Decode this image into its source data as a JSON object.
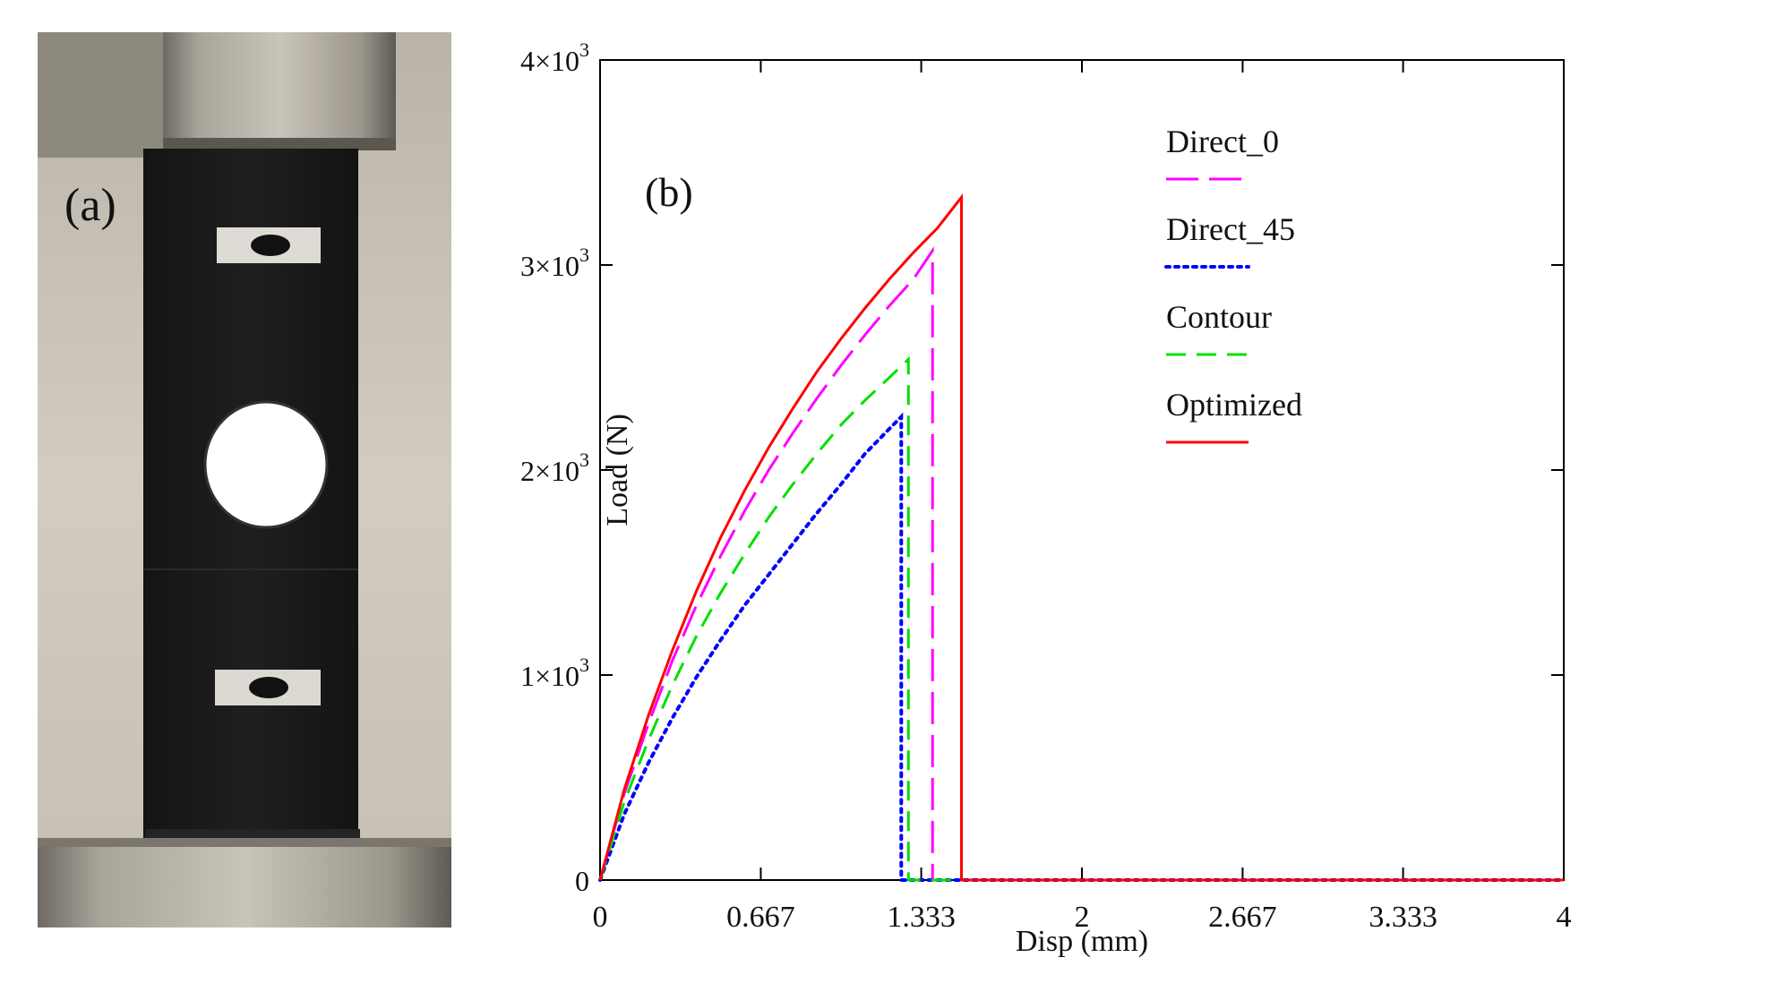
{
  "figure": {
    "panel_a_label": "(a)",
    "panel_b_label": "(b)"
  },
  "colors": {
    "direct_0": "#ff00ff",
    "direct_45": "#0000ff",
    "contour": "#00e000",
    "optimized": "#ff0000"
  },
  "chart_data": {
    "type": "line",
    "title": "",
    "xlabel": "Disp (mm)",
    "ylabel": "Load (N)",
    "xlim": [
      0,
      4
    ],
    "ylim": [
      0,
      4000
    ],
    "x_ticks": [
      0,
      0.667,
      1.333,
      2,
      2.667,
      3.333,
      4
    ],
    "x_tick_labels": [
      "0",
      "0.667",
      "1.333",
      "2",
      "2.667",
      "3.333",
      "4"
    ],
    "y_ticks": [
      0,
      1000,
      2000,
      3000,
      4000
    ],
    "y_tick_labels": [
      {
        "mant": "0",
        "exp": ""
      },
      {
        "mant": "1×10",
        "exp": "3"
      },
      {
        "mant": "2×10",
        "exp": "3"
      },
      {
        "mant": "3×10",
        "exp": "3"
      },
      {
        "mant": "4×10",
        "exp": "3"
      }
    ],
    "legend_position": "top-right",
    "series": [
      {
        "name": "Direct_0",
        "color": "#ff00ff",
        "style": "long-dash",
        "points": [
          [
            0,
            0
          ],
          [
            0.1,
            420
          ],
          [
            0.2,
            760
          ],
          [
            0.3,
            1070
          ],
          [
            0.4,
            1340
          ],
          [
            0.5,
            1580
          ],
          [
            0.6,
            1800
          ],
          [
            0.7,
            2000
          ],
          [
            0.8,
            2180
          ],
          [
            0.9,
            2350
          ],
          [
            1.0,
            2510
          ],
          [
            1.1,
            2660
          ],
          [
            1.2,
            2800
          ],
          [
            1.3,
            2930
          ],
          [
            1.38,
            3070
          ],
          [
            1.38,
            0
          ],
          [
            4,
            0
          ]
        ]
      },
      {
        "name": "Direct_45",
        "color": "#0000ff",
        "style": "dotted",
        "points": [
          [
            0,
            0
          ],
          [
            0.1,
            320
          ],
          [
            0.2,
            570
          ],
          [
            0.3,
            790
          ],
          [
            0.4,
            990
          ],
          [
            0.5,
            1170
          ],
          [
            0.6,
            1340
          ],
          [
            0.7,
            1490
          ],
          [
            0.8,
            1640
          ],
          [
            0.9,
            1790
          ],
          [
            1.0,
            1930
          ],
          [
            1.1,
            2080
          ],
          [
            1.2,
            2200
          ],
          [
            1.25,
            2260
          ],
          [
            1.25,
            0
          ],
          [
            4,
            0
          ]
        ]
      },
      {
        "name": "Contour",
        "color": "#00e000",
        "style": "dashed",
        "points": [
          [
            0,
            0
          ],
          [
            0.1,
            380
          ],
          [
            0.2,
            680
          ],
          [
            0.3,
            950
          ],
          [
            0.4,
            1190
          ],
          [
            0.5,
            1400
          ],
          [
            0.6,
            1590
          ],
          [
            0.7,
            1770
          ],
          [
            0.8,
            1930
          ],
          [
            0.9,
            2080
          ],
          [
            1.0,
            2220
          ],
          [
            1.1,
            2340
          ],
          [
            1.2,
            2450
          ],
          [
            1.28,
            2540
          ],
          [
            1.28,
            0
          ],
          [
            4,
            0
          ]
        ]
      },
      {
        "name": "Optimized",
        "color": "#ff0000",
        "style": "solid",
        "points": [
          [
            0,
            0
          ],
          [
            0.1,
            440
          ],
          [
            0.2,
            800
          ],
          [
            0.3,
            1120
          ],
          [
            0.4,
            1410
          ],
          [
            0.5,
            1670
          ],
          [
            0.6,
            1900
          ],
          [
            0.7,
            2110
          ],
          [
            0.8,
            2300
          ],
          [
            0.9,
            2480
          ],
          [
            1.0,
            2640
          ],
          [
            1.1,
            2790
          ],
          [
            1.2,
            2930
          ],
          [
            1.3,
            3060
          ],
          [
            1.4,
            3180
          ],
          [
            1.5,
            3330
          ],
          [
            1.5,
            0
          ],
          [
            4,
            0
          ]
        ]
      }
    ]
  }
}
